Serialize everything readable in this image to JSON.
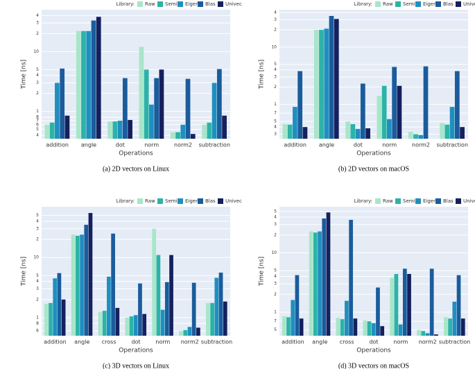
{
  "chart_data": [
    {
      "type": "bar",
      "log_y": true,
      "grid": true,
      "legend_title": "Library:",
      "ylabel": "Time [ns]",
      "xlabel": "Operations",
      "caption": "(a) 2D vectors on Linux",
      "categories": [
        "addition",
        "angle",
        "dot",
        "norm",
        "norm2",
        "subtraction"
      ],
      "ylim": [
        0.35,
        50
      ],
      "yticks": [
        {
          "value": 0.4,
          "label": "4"
        },
        {
          "value": 0.5,
          "label": "5"
        },
        {
          "value": 0.6,
          "label": "6"
        },
        {
          "value": 0.7,
          "label": "7"
        },
        {
          "value": 0.8,
          "label": "8"
        },
        1,
        2,
        3,
        4,
        5,
        10,
        {
          "value": 20,
          "label": "2"
        },
        {
          "value": 30,
          "label": "3"
        },
        {
          "value": 40,
          "label": "4"
        }
      ],
      "series": [
        {
          "name": "Raw",
          "color": "#a8e6c9",
          "values": [
            0.6,
            22,
            0.68,
            12,
            0.45,
            0.6
          ]
        },
        {
          "name": "Semi",
          "color": "#2bb3a7",
          "values": [
            0.65,
            22,
            0.68,
            5,
            0.45,
            0.65
          ]
        },
        {
          "name": "Eigen",
          "color": "#1f8fbf",
          "values": [
            3,
            22,
            0.7,
            1.3,
            0.6,
            3
          ]
        },
        {
          "name": "Blas",
          "color": "#1a5c9c",
          "values": [
            5.2,
            33,
            3.6,
            3.6,
            3.5,
            5.1
          ]
        },
        {
          "name": "Univec",
          "color": "#15215e",
          "values": [
            0.85,
            38,
            0.72,
            5,
            0.42,
            0.85
          ]
        }
      ]
    },
    {
      "type": "bar",
      "log_y": true,
      "grid": true,
      "legend_title": "Library:",
      "ylabel": "Time [ns]",
      "xlabel": "Operations",
      "caption": "(b) 2D vectors on macOS",
      "categories": [
        "addition",
        "angle",
        "dot",
        "norm",
        "norm2",
        "subtraction"
      ],
      "ylim": [
        0.25,
        45
      ],
      "yticks": [
        {
          "value": 0.3,
          "label": "3"
        },
        {
          "value": 0.4,
          "label": "4"
        },
        {
          "value": 0.5,
          "label": "5"
        },
        {
          "value": 0.7,
          "label": "7"
        },
        1,
        2,
        3,
        4,
        5,
        10,
        {
          "value": 20,
          "label": "2"
        },
        {
          "value": 30,
          "label": "3"
        },
        {
          "value": 40,
          "label": "4"
        }
      ],
      "series": [
        {
          "name": "Raw",
          "color": "#a8e6c9",
          "values": [
            0.45,
            20,
            0.5,
            1.4,
            0.33,
            0.47
          ]
        },
        {
          "name": "Semi",
          "color": "#2bb3a7",
          "values": [
            0.44,
            20,
            0.45,
            2.1,
            0.3,
            0.44
          ]
        },
        {
          "name": "Eigen",
          "color": "#1f8fbf",
          "values": [
            0.9,
            21,
            0.37,
            0.55,
            0.29,
            0.9
          ]
        },
        {
          "name": "Blas",
          "color": "#1a5c9c",
          "values": [
            3.8,
            35,
            2.3,
            4.5,
            4.6,
            3.8
          ]
        },
        {
          "name": "Univec",
          "color": "#15215e",
          "values": [
            0.4,
            31,
            0.38,
            2.1,
            0.25,
            0.4
          ]
        }
      ]
    },
    {
      "type": "bar",
      "log_y": true,
      "grid": true,
      "legend_title": "Library:",
      "ylabel": "Time [ns]",
      "xlabel": "Operations",
      "caption": "(c) 3D vectors on Linux",
      "categories": [
        "addition",
        "angle",
        "cross",
        "dot",
        "norm",
        "norm2",
        "subtraction"
      ],
      "ylim": [
        0.5,
        70
      ],
      "yticks": [
        {
          "value": 0.6,
          "label": "6"
        },
        {
          "value": 0.8,
          "label": "8"
        },
        1,
        2,
        3,
        4,
        5,
        10,
        {
          "value": 20,
          "label": "2"
        },
        {
          "value": 30,
          "label": "3"
        },
        {
          "value": 40,
          "label": "4"
        },
        {
          "value": 50,
          "label": "5"
        }
      ],
      "series": [
        {
          "name": "Raw",
          "color": "#a8e6c9",
          "values": [
            1.7,
            24,
            1.25,
            1,
            30,
            0.6,
            1.75
          ]
        },
        {
          "name": "Semi",
          "color": "#2bb3a7",
          "values": [
            1.75,
            23,
            1.3,
            1.05,
            11,
            0.62,
            1.75
          ]
        },
        {
          "name": "Eigen",
          "color": "#1f8fbf",
          "values": [
            4.5,
            24,
            4.8,
            1.1,
            1.35,
            0.7,
            4.6
          ]
        },
        {
          "name": "Blas",
          "color": "#1a5c9c",
          "values": [
            5.5,
            35,
            25,
            3.7,
            3.9,
            3.8,
            5.6
          ]
        },
        {
          "name": "Univec",
          "color": "#15215e",
          "values": [
            2,
            55,
            1.45,
            1.15,
            11,
            0.68,
            1.85
          ]
        }
      ]
    },
    {
      "type": "bar",
      "log_y": true,
      "grid": true,
      "legend_title": "Library:",
      "ylabel": "Time [ns]",
      "xlabel": "Operations",
      "caption": "(d) 3D vectors on macOS",
      "categories": [
        "addition",
        "angle",
        "cross",
        "dot",
        "norm",
        "norm2",
        "subtraction"
      ],
      "ylim": [
        0.4,
        60
      ],
      "yticks": [
        {
          "value": 0.5,
          "label": "5"
        },
        {
          "value": 0.7,
          "label": "7"
        },
        1,
        2,
        3,
        4,
        5,
        10,
        {
          "value": 20,
          "label": "2"
        },
        {
          "value": 30,
          "label": "3"
        },
        {
          "value": 40,
          "label": "4"
        },
        {
          "value": 50,
          "label": "5"
        }
      ],
      "series": [
        {
          "name": "Raw",
          "color": "#a8e6c9",
          "values": [
            0.85,
            23,
            0.8,
            0.72,
            3.8,
            0.5,
            0.82
          ]
        },
        {
          "name": "Semi",
          "color": "#2bb3a7",
          "values": [
            0.82,
            22,
            0.76,
            0.7,
            4.4,
            0.48,
            0.78
          ]
        },
        {
          "name": "Eigen",
          "color": "#1f8fbf",
          "values": [
            1.6,
            23,
            1.55,
            0.65,
            0.62,
            0.44,
            1.5
          ]
        },
        {
          "name": "Blas",
          "color": "#1a5c9c",
          "values": [
            4.2,
            38,
            36,
            2.6,
            5.4,
            5.4,
            4.2
          ]
        },
        {
          "name": "Univec",
          "color": "#15215e",
          "values": [
            0.78,
            48,
            0.78,
            0.58,
            4.4,
            0.42,
            0.78
          ]
        }
      ]
    }
  ]
}
